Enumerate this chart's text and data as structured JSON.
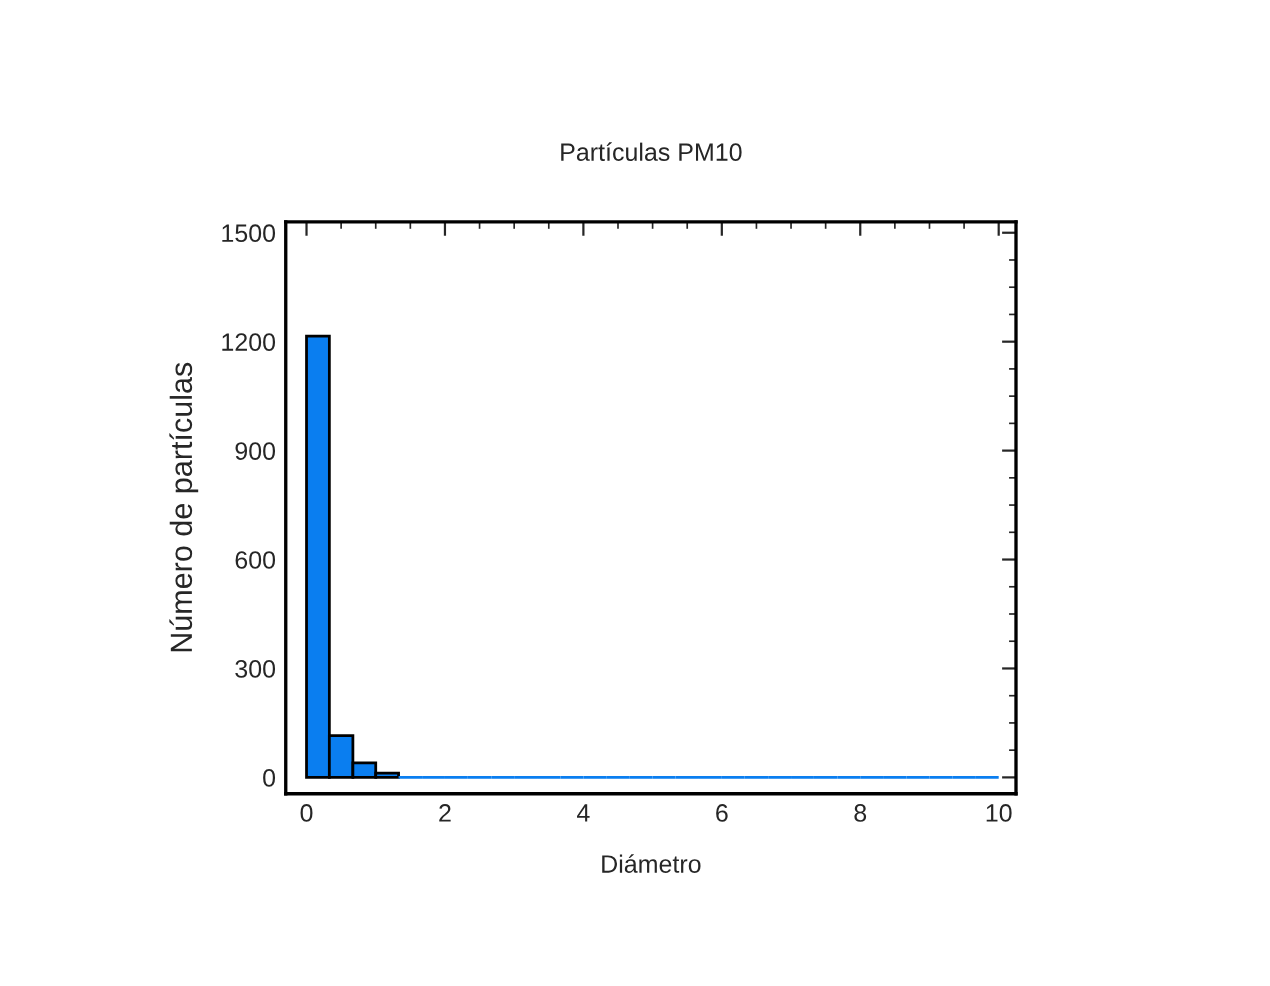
{
  "chart_data": {
    "type": "histogram",
    "title": "Partículas PM10",
    "xlabel": "Diámetro",
    "ylabel": "Número de partículas",
    "bins": [
      0,
      0.33,
      0.67,
      1,
      1.33,
      1.67,
      2,
      2.33,
      2.67,
      3,
      3.33,
      3.67,
      4,
      4.33,
      4.67,
      5,
      5.33,
      5.67,
      6,
      6.33,
      6.67,
      7,
      7.33,
      7.67,
      8,
      8.33,
      8.67,
      9,
      9.33,
      9.67,
      10
    ],
    "values": [
      1215,
      115,
      40,
      12,
      0,
      0,
      0,
      0,
      0,
      0,
      0,
      0,
      0,
      0,
      0,
      0,
      0,
      0,
      0,
      0,
      0,
      0,
      0,
      0,
      0,
      0,
      0,
      0,
      0,
      0
    ],
    "color": "#0a7ef0",
    "xlim": [
      -0.3,
      10.25
    ],
    "xticks": [
      0,
      2,
      4,
      6,
      8,
      10
    ],
    "ylim": [
      -45,
      1530
    ],
    "yticks": [
      0,
      300,
      600,
      900,
      1200,
      1500
    ],
    "grid": false
  }
}
